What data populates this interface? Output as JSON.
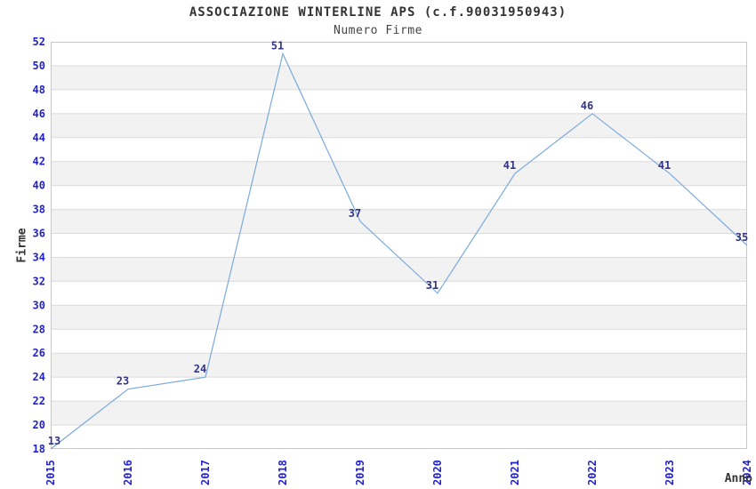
{
  "chart_data": {
    "type": "line",
    "title": "ASSOCIAZIONE WINTERLINE APS (c.f.90031950943)",
    "subtitle": "Numero Firme",
    "xlabel": "Anno",
    "ylabel": "Firme",
    "categories": [
      "2015",
      "2016",
      "2017",
      "2018",
      "2019",
      "2020",
      "2021",
      "2022",
      "2023",
      "2024"
    ],
    "values": [
      13,
      23,
      24,
      51,
      37,
      31,
      41,
      46,
      41,
      35
    ],
    "ylim": [
      18,
      52
    ],
    "ytick_step": 2,
    "grid": "horizontal",
    "legend": "none",
    "banded_background": true,
    "note_clipping": "2015 value 13 is below y-axis minimum 18 and is drawn clipped at the bottom edge",
    "colors": {
      "line": "#7AAADD",
      "tick_label": "#2222CC",
      "point_label": "#333388",
      "stripe": "#F2F2F2",
      "grid_line": "#DBDBDB",
      "plot_border": "#C8C8C8",
      "background": "#FFFFFF",
      "title_text": "#333333"
    }
  }
}
